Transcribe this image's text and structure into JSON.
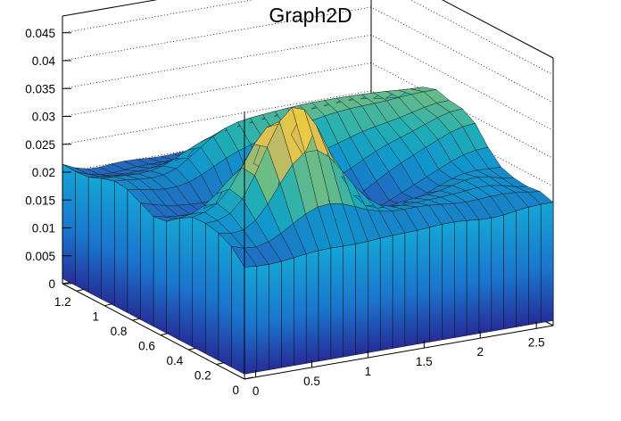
{
  "chart_data": {
    "type": "surface",
    "title": "Graph2D",
    "xlabel": "",
    "ylabel": "",
    "zlabel": "",
    "grid": true,
    "xlim": [
      -0.1,
      2.65
    ],
    "ylim": [
      0,
      1.3
    ],
    "zlim": [
      0,
      0.048
    ],
    "x_ticks": [
      "0",
      "0.5",
      "1",
      "1.5",
      "2",
      "2.5"
    ],
    "y_ticks": [
      "0",
      "0.2",
      "0.4",
      "0.6",
      "0.8",
      "1",
      "1.2"
    ],
    "z_ticks": [
      "0",
      "0.005",
      "0.01",
      "0.015",
      "0.02",
      "0.025",
      "0.03",
      "0.035",
      "0.04",
      "0.045"
    ],
    "x_tick_values": [
      0,
      0.5,
      1,
      1.5,
      2,
      2.5
    ],
    "y_tick_values": [
      0,
      0.2,
      0.4,
      0.6,
      0.8,
      1.0,
      1.2
    ],
    "z_tick_values": [
      0,
      0.005,
      0.01,
      0.015,
      0.02,
      0.025,
      0.03,
      0.035,
      0.04,
      0.045
    ],
    "surface_x": [
      -0.1,
      0.01,
      0.12,
      0.23,
      0.34,
      0.45,
      0.56,
      0.67,
      0.78,
      0.89,
      1.0,
      1.11,
      1.22,
      1.33,
      1.44,
      1.55,
      1.66,
      1.77,
      1.88,
      1.99,
      2.1,
      2.21,
      2.32,
      2.43,
      2.54,
      2.65
    ],
    "surface_y": [
      0.0,
      0.0929,
      0.1857,
      0.2786,
      0.3714,
      0.4643,
      0.5571,
      0.65,
      0.7429,
      0.8357,
      0.9286,
      1.0214,
      1.1143,
      1.2071,
      1.3
    ],
    "surface_z": [
      [
        0.02009,
        0.01988,
        0.01981,
        0.01995,
        0.02024,
        0.02055,
        0.02076,
        0.02081,
        0.02077,
        0.02076,
        0.02086,
        0.02103,
        0.02116,
        0.02122,
        0.02129,
        0.02145,
        0.02163,
        0.02167,
        0.02152,
        0.02129,
        0.0212,
        0.02138,
        0.02172,
        0.02201,
        0.02211,
        0.02212
      ],
      [
        0.02258,
        0.02188,
        0.0217,
        0.02224,
        0.02336,
        0.02477,
        0.02609,
        0.02697,
        0.02718,
        0.02673,
        0.02587,
        0.02494,
        0.02426,
        0.02394,
        0.02388,
        0.02389,
        0.0238,
        0.02359,
        0.02336,
        0.02326,
        0.02333,
        0.02348,
        0.02355,
        0.02342,
        0.02309,
        0.02282
      ],
      [
        0.02377,
        0.0233,
        0.02351,
        0.02489,
        0.02745,
        0.03073,
        0.03376,
        0.03554,
        0.03555,
        0.03387,
        0.03109,
        0.02803,
        0.02548,
        0.02384,
        0.02312,
        0.02299,
        0.02307,
        0.02317,
        0.02327,
        0.02343,
        0.02365,
        0.02384,
        0.02381,
        0.02345,
        0.02286,
        0.0225
      ],
      [
        0.02426,
        0.02439,
        0.02528,
        0.02752,
        0.03133,
        0.03604,
        0.04023,
        0.04237,
        0.04165,
        0.03833,
        0.03349,
        0.02853,
        0.02468,
        0.02245,
        0.02165,
        0.02172,
        0.02205,
        0.02231,
        0.02251,
        0.02284,
        0.02339,
        0.02392,
        0.02412,
        0.02382,
        0.02318,
        0.02276
      ],
      [
        0.02417,
        0.02465,
        0.02581,
        0.02808,
        0.03153,
        0.03528,
        0.03792,
        0.0382,
        0.03584,
        0.03164,
        0.02694,
        0.02292,
        0.02021,
        0.01889,
        0.01865,
        0.01899,
        0.01949,
        0.01997,
        0.02049,
        0.02121,
        0.02211,
        0.023,
        0.02358,
        0.02374,
        0.02363,
        0.02353
      ],
      [
        0.02273,
        0.02318,
        0.02422,
        0.02596,
        0.02811,
        0.02988,
        0.03024,
        0.02871,
        0.02566,
        0.02209,
        0.01905,
        0.01707,
        0.01617,
        0.01611,
        0.01661,
        0.01743,
        0.0184,
        0.0194,
        0.02041,
        0.02143,
        0.02246,
        0.02349,
        0.02447,
        0.02528,
        0.02574,
        0.02585
      ],
      [
        0.02095,
        0.02103,
        0.02143,
        0.02207,
        0.02265,
        0.02275,
        0.02207,
        0.02061,
        0.01875,
        0.01707,
        0.01603,
        0.01576,
        0.01614,
        0.01692,
        0.01791,
        0.01904,
        0.0203,
        0.02165,
        0.02296,
        0.02413,
        0.02517,
        0.02616,
        0.02716,
        0.02809,
        0.02872,
        0.02893
      ],
      [
        0.02062,
        0.02015,
        0.01994,
        0.01985,
        0.01965,
        0.01919,
        0.01848,
        0.0177,
        0.01713,
        0.01699,
        0.01734,
        0.01806,
        0.01899,
        0.01998,
        0.02098,
        0.02201,
        0.02313,
        0.0243,
        0.02539,
        0.02631,
        0.02709,
        0.02785,
        0.02869,
        0.02952,
        0.03012,
        0.03033
      ],
      [
        0.02181,
        0.02113,
        0.0206,
        0.02023,
        0.02002,
        0.01995,
        0.02004,
        0.02031,
        0.0208,
        0.0215,
        0.02232,
        0.02315,
        0.02387,
        0.0245,
        0.02508,
        0.0257,
        0.02638,
        0.02708,
        0.02771,
        0.02821,
        0.02862,
        0.02907,
        0.0296,
        0.03014,
        0.03052,
        0.03064
      ],
      [
        0.02303,
        0.02261,
        0.02221,
        0.02194,
        0.02197,
        0.02244,
        0.02332,
        0.02445,
        0.02555,
        0.02648,
        0.0272,
        0.02778,
        0.02828,
        0.02875,
        0.02922,
        0.02967,
        0.03007,
        0.03038,
        0.03058,
        0.03069,
        0.03077,
        0.03089,
        0.03106,
        0.03123,
        0.03133,
        0.03133
      ],
      [
        0.02328,
        0.02311,
        0.02286,
        0.02268,
        0.02287,
        0.02365,
        0.02503,
        0.02669,
        0.02823,
        0.02936,
        0.03004,
        0.0304,
        0.03062,
        0.03081,
        0.03099,
        0.03113,
        0.03122,
        0.03125,
        0.03124,
        0.0312,
        0.03114,
        0.03106,
        0.03094,
        0.03077,
        0.03062,
        0.03054
      ],
      [
        0.02253,
        0.02247,
        0.02233,
        0.02221,
        0.02235,
        0.0229,
        0.02385,
        0.02497,
        0.02598,
        0.02674,
        0.02724,
        0.02759,
        0.02788,
        0.02812,
        0.02829,
        0.02836,
        0.02839,
        0.02845,
        0.0286,
        0.02879,
        0.02888,
        0.02876,
        0.02845,
        0.02809,
        0.02781,
        0.0277
      ],
      [
        0.02156,
        0.02127,
        0.02105,
        0.02096,
        0.02105,
        0.02127,
        0.02156,
        0.02186,
        0.02212,
        0.02234,
        0.02255,
        0.02276,
        0.02294,
        0.02306,
        0.02308,
        0.02305,
        0.02308,
        0.02326,
        0.02355,
        0.0238,
        0.02387,
        0.02369,
        0.02332,
        0.02294,
        0.02266,
        0.02255
      ],
      [
        0.02132,
        0.02049,
        0.01999,
        0.01993,
        0.02013,
        0.0203,
        0.02034,
        0.02033,
        0.02034,
        0.02039,
        0.02045,
        0.02048,
        0.02045,
        0.02034,
        0.02019,
        0.02011,
        0.02018,
        0.02039,
        0.02061,
        0.02069,
        0.02055,
        0.0202,
        0.01977,
        0.01939,
        0.01913,
        0.01904
      ],
      [
        0.02142,
        0.02042,
        0.0198,
        0.01974,
        0.01995,
        0.02007,
        0.01998,
        0.01982,
        0.01975,
        0.01982,
        0.01994,
        0.02001,
        0.01997,
        0.0198,
        0.01955,
        0.01933,
        0.01923,
        0.01922,
        0.0192,
        0.01905,
        0.01872,
        0.01825,
        0.01775,
        0.01735,
        0.01711,
        0.01703
      ]
    ]
  }
}
